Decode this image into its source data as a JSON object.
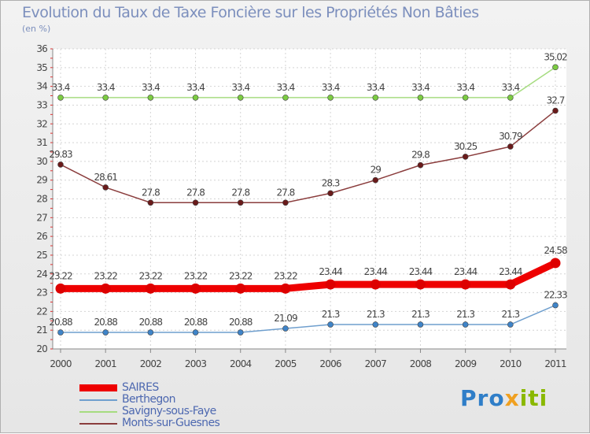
{
  "chart_data": {
    "type": "line",
    "title": "Evolution du Taux de Taxe Foncière sur les Propriétés Non Bâties",
    "ylabel": "(en %)",
    "xlabel": "",
    "ylim": [
      20,
      36
    ],
    "yticks": [
      20,
      21,
      22,
      23,
      24,
      25,
      26,
      27,
      28,
      29,
      30,
      31,
      32,
      33,
      34,
      35,
      36
    ],
    "x": [
      "2000",
      "2001",
      "2002",
      "2003",
      "2004",
      "2005",
      "2006",
      "2007",
      "2008",
      "2009",
      "2010",
      "2011"
    ],
    "grid": true,
    "legend_position": "bottom-left",
    "series": [
      {
        "name": "SAIRES",
        "color": "#ee0000",
        "marker": "#dd0000",
        "values": [
          23.22,
          23.22,
          23.22,
          23.22,
          23.22,
          23.22,
          23.44,
          23.44,
          23.44,
          23.44,
          23.44,
          24.58
        ],
        "labels": [
          "23.22",
          "23.22",
          "23.22",
          "23.22",
          "23.22",
          "23.22",
          "23.44",
          "23.44",
          "23.44",
          "23.44",
          "23.44",
          "24.58"
        ]
      },
      {
        "name": "Berthegon",
        "color": "#6f9fce",
        "marker": "#3f84c8",
        "values": [
          20.88,
          20.88,
          20.88,
          20.88,
          20.88,
          21.09,
          21.3,
          21.3,
          21.3,
          21.3,
          21.3,
          22.33
        ],
        "labels": [
          "20.88",
          "20.88",
          "20.88",
          "20.88",
          "20.88",
          "21.09",
          "21.3",
          "21.3",
          "21.3",
          "21.3",
          "21.3",
          "22.33"
        ]
      },
      {
        "name": "Savigny-sous-Faye",
        "color": "#a6dc80",
        "marker": "#7ccc42",
        "values": [
          33.4,
          33.4,
          33.4,
          33.4,
          33.4,
          33.4,
          33.4,
          33.4,
          33.4,
          33.4,
          33.4,
          35.02
        ],
        "labels": [
          "33.4",
          "33.4",
          "33.4",
          "33.4",
          "33.4",
          "33.4",
          "33.4",
          "33.4",
          "33.4",
          "33.4",
          "33.4",
          "35.02"
        ]
      },
      {
        "name": "Monts-sur-Guesnes",
        "color": "#8a3c3c",
        "marker": "#6a1a1a",
        "values": [
          29.83,
          28.61,
          27.8,
          27.8,
          27.8,
          27.8,
          28.3,
          29,
          29.8,
          30.25,
          30.79,
          32.7
        ],
        "labels": [
          "29.83",
          "28.61",
          "27.8",
          "27.8",
          "27.8",
          "27.8",
          "28.3",
          "29",
          "29.8",
          "30.25",
          "30.79",
          "32.7"
        ]
      }
    ]
  },
  "logo": {
    "part1": "Pro",
    "part2": "x",
    "part3": "iti"
  }
}
